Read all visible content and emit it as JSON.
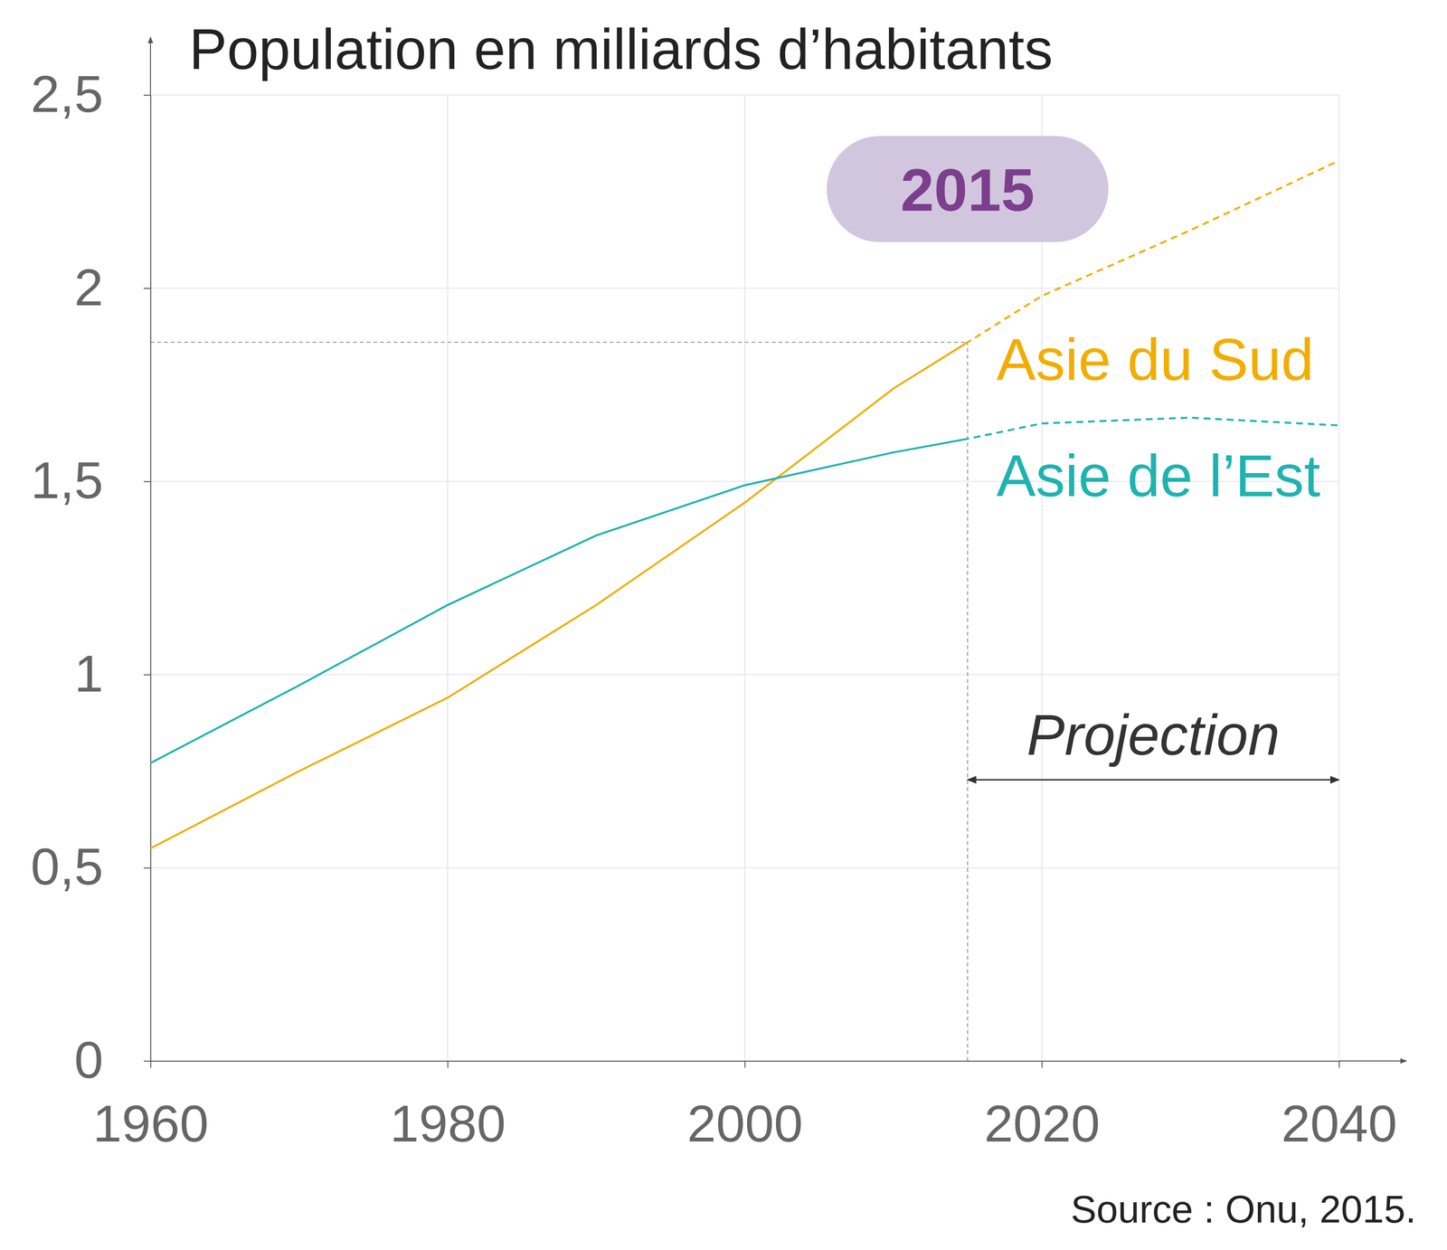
{
  "chart_data": {
    "type": "line",
    "title": "Population en milliards d’habitants",
    "source": "Source : Onu, 2015.",
    "x": [
      1960,
      1970,
      1980,
      1990,
      2000,
      2010,
      2015,
      2020,
      2030,
      2040
    ],
    "series": [
      {
        "name": "Asie du Sud",
        "color": "#f2ad00",
        "values": [
          0.55,
          0.75,
          0.94,
          1.18,
          1.445,
          1.74,
          1.86,
          1.98,
          2.15,
          2.33
        ]
      },
      {
        "name": "Asie de l’Est",
        "color": "#1fb3b0",
        "values": [
          0.771,
          0.972,
          1.18,
          1.36,
          1.49,
          1.575,
          1.61,
          1.65,
          1.665,
          1.645
        ]
      }
    ],
    "xlim": [
      1960,
      2040
    ],
    "xticks": [
      1960,
      1980,
      2000,
      2020,
      2040
    ],
    "ylim": [
      0,
      2.5
    ],
    "yticks": [
      0,
      {
        "value": 0.5,
        "label": "0,5"
      },
      1,
      {
        "value": 1.5,
        "label": "1,5"
      },
      2,
      {
        "value": 2.5,
        "label": "2,5"
      }
    ],
    "grid": true,
    "highlight": {
      "label": "2015",
      "x": 2015,
      "y": 1.86
    },
    "projection": {
      "label": "Projection",
      "start": 2015,
      "end": 2040
    }
  }
}
